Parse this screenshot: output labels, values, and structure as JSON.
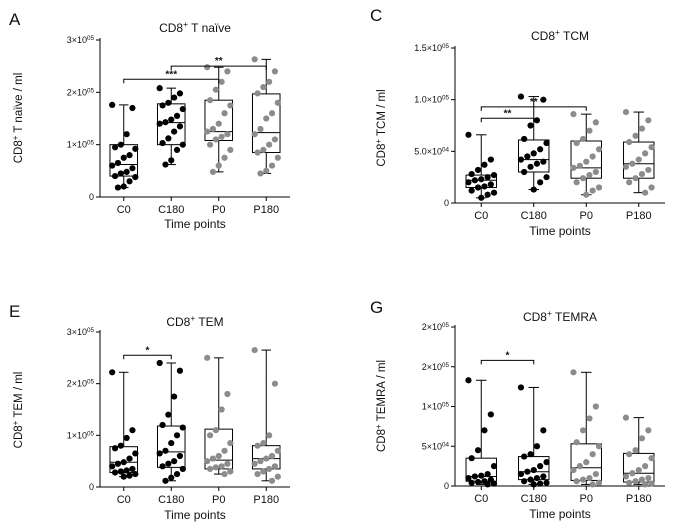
{
  "chart_data": [
    {
      "type": "box",
      "panel_letter": "A",
      "title_parts": [
        [
          "CD8",
          ""
        ],
        [
          "+",
          "sup"
        ],
        [
          " T naïve",
          ""
        ]
      ],
      "ylabel_parts": [
        [
          "CD8",
          ""
        ],
        [
          "+",
          "sup"
        ],
        [
          " T naïve / ml",
          ""
        ]
      ],
      "xlabel": "Time points",
      "categories": [
        "C0",
        "C180",
        "P0",
        "P180"
      ],
      "ylim": [
        0,
        300000
      ],
      "yticks": [
        {
          "value": 0,
          "parts": [
            [
              "0",
              ""
            ]
          ]
        },
        {
          "value": 100000,
          "parts": [
            [
              "1×10",
              ""
            ],
            [
              "05",
              "sup"
            ]
          ]
        },
        {
          "value": 200000,
          "parts": [
            [
              "2×10",
              ""
            ],
            [
              "05",
              "sup"
            ]
          ]
        },
        {
          "value": 300000,
          "parts": [
            [
              "3×10",
              ""
            ],
            [
              "05",
              "sup"
            ]
          ]
        }
      ],
      "colors": [
        "#000000",
        "#000000",
        "#8c8c8c",
        "#8c8c8c"
      ],
      "boxes": [
        {
          "min": 18000,
          "q1": 40000,
          "median": 62000,
          "q3": 100000,
          "max": 176000
        },
        {
          "min": 62000,
          "q1": 100000,
          "median": 142000,
          "q3": 178000,
          "max": 208000
        },
        {
          "min": 48000,
          "q1": 108000,
          "median": 125000,
          "q3": 185000,
          "max": 248000
        },
        {
          "min": 45000,
          "q1": 85000,
          "median": 123000,
          "q3": 197000,
          "max": 263000
        }
      ],
      "points": [
        [
          176000,
          170000,
          120000,
          100000,
          95000,
          92000,
          80000,
          75000,
          65000,
          60000,
          55000,
          48000,
          45000,
          40000,
          38000,
          30000,
          20000,
          18000
        ],
        [
          208000,
          198000,
          190000,
          180000,
          175000,
          168000,
          155000,
          148000,
          143000,
          140000,
          135000,
          125000,
          112000,
          103000,
          100000,
          90000,
          70000,
          62000
        ],
        [
          248000,
          240000,
          220000,
          205000,
          185000,
          175000,
          160000,
          140000,
          130000,
          125000,
          120000,
          115000,
          110000,
          100000,
          90000,
          75000,
          60000,
          48000
        ],
        [
          263000,
          240000,
          220000,
          210000,
          198000,
          180000,
          160000,
          150000,
          130000,
          120000,
          110000,
          100000,
          90000,
          85000,
          75000,
          60000,
          50000,
          45000
        ]
      ],
      "significance": [
        {
          "from": 0,
          "to": 2,
          "y": 225000,
          "label": "***"
        },
        {
          "from": 1,
          "to": 3,
          "y": 250000,
          "label": "**"
        }
      ]
    },
    {
      "type": "box",
      "panel_letter": "C",
      "title_parts": [
        [
          "CD8",
          ""
        ],
        [
          "+",
          "sup"
        ],
        [
          " TCM",
          ""
        ]
      ],
      "ylabel_parts": [
        [
          "CD8",
          ""
        ],
        [
          "+",
          "sup"
        ],
        [
          " TCM / ml",
          ""
        ]
      ],
      "xlabel": "Time points",
      "categories": [
        "C0",
        "C180",
        "P0",
        "P180"
      ],
      "ylim": [
        0,
        150000
      ],
      "yticks": [
        {
          "value": 0,
          "parts": [
            [
              "0",
              ""
            ]
          ]
        },
        {
          "value": 50000,
          "parts": [
            [
              "5.0×10",
              ""
            ],
            [
              "04",
              "sup"
            ]
          ]
        },
        {
          "value": 100000,
          "parts": [
            [
              "1.0×10",
              ""
            ],
            [
              "05",
              "sup"
            ]
          ]
        },
        {
          "value": 150000,
          "parts": [
            [
              "1.5×10",
              ""
            ],
            [
              "05",
              "sup"
            ]
          ]
        }
      ],
      "colors": [
        "#000000",
        "#000000",
        "#8c8c8c",
        "#8c8c8c"
      ],
      "boxes": [
        {
          "min": 5000,
          "q1": 15000,
          "median": 22000,
          "q3": 27000,
          "max": 66000
        },
        {
          "min": 13000,
          "q1": 30000,
          "median": 42000,
          "q3": 61000,
          "max": 103000
        },
        {
          "min": 8000,
          "q1": 24000,
          "median": 34000,
          "q3": 60000,
          "max": 86000
        },
        {
          "min": 10000,
          "q1": 24000,
          "median": 38000,
          "q3": 59000,
          "max": 88000
        }
      ],
      "points": [
        [
          66000,
          42000,
          37000,
          32000,
          28000,
          27000,
          25000,
          23000,
          22000,
          20000,
          18000,
          16000,
          15000,
          12000,
          10000,
          8000,
          5000
        ],
        [
          103000,
          100000,
          80000,
          75000,
          62000,
          58000,
          52000,
          48000,
          45000,
          42000,
          40000,
          38000,
          35000,
          30000,
          25000,
          20000,
          13000
        ],
        [
          86000,
          78000,
          70000,
          62000,
          58000,
          52000,
          45000,
          40000,
          36000,
          34000,
          30000,
          27000,
          24000,
          20000,
          15000,
          12000,
          8000
        ],
        [
          88000,
          80000,
          72000,
          65000,
          59000,
          54000,
          48000,
          42000,
          38000,
          35000,
          32000,
          28000,
          24000,
          20000,
          15000,
          10000
        ]
      ],
      "significance": [
        {
          "from": 0,
          "to": 1,
          "y": 82000,
          "label": "**"
        },
        {
          "from": 0,
          "to": 2,
          "y": 93000,
          "label": "**"
        }
      ]
    },
    {
      "type": "box",
      "panel_letter": "E",
      "title_parts": [
        [
          "CD8",
          ""
        ],
        [
          "+",
          "sup"
        ],
        [
          " TEM",
          ""
        ]
      ],
      "ylabel_parts": [
        [
          "CD8",
          ""
        ],
        [
          "+",
          "sup"
        ],
        [
          " TEM / ml",
          ""
        ]
      ],
      "xlabel": "Time points",
      "categories": [
        "C0",
        "C180",
        "P0",
        "P180"
      ],
      "ylim": [
        0,
        300000
      ],
      "yticks": [
        {
          "value": 0,
          "parts": [
            [
              "0",
              ""
            ]
          ]
        },
        {
          "value": 100000,
          "parts": [
            [
              "1×10",
              ""
            ],
            [
              "05",
              "sup"
            ]
          ]
        },
        {
          "value": 200000,
          "parts": [
            [
              "2×10",
              ""
            ],
            [
              "05",
              "sup"
            ]
          ]
        },
        {
          "value": 300000,
          "parts": [
            [
              "3×10",
              ""
            ],
            [
              "05",
              "sup"
            ]
          ]
        }
      ],
      "colors": [
        "#000000",
        "#000000",
        "#8c8c8c",
        "#8c8c8c"
      ],
      "boxes": [
        {
          "min": 20000,
          "q1": 28000,
          "median": 48000,
          "q3": 78000,
          "max": 222000
        },
        {
          "min": 12000,
          "q1": 38000,
          "median": 68000,
          "q3": 118000,
          "max": 240000
        },
        {
          "min": 25000,
          "q1": 35000,
          "median": 52000,
          "q3": 112000,
          "max": 250000
        },
        {
          "min": 12000,
          "q1": 35000,
          "median": 55000,
          "q3": 80000,
          "max": 265000
        }
      ],
      "points": [
        [
          222000,
          110000,
          95000,
          80000,
          75000,
          65000,
          55000,
          48000,
          45000,
          40000,
          35000,
          32000,
          30000,
          28000,
          25000,
          22000,
          20000
        ],
        [
          240000,
          225000,
          175000,
          140000,
          120000,
          115000,
          100000,
          85000,
          70000,
          65000,
          60000,
          50000,
          45000,
          40000,
          35000,
          25000,
          18000,
          12000
        ],
        [
          250000,
          180000,
          150000,
          110000,
          100000,
          85000,
          70000,
          60000,
          55000,
          50000,
          45000,
          40000,
          38000,
          35000,
          30000,
          25000
        ],
        [
          265000,
          200000,
          100000,
          85000,
          80000,
          70000,
          60000,
          55000,
          50000,
          45000,
          40000,
          35000,
          30000,
          25000,
          20000,
          12000
        ]
      ],
      "significance": [
        {
          "from": 0,
          "to": 1,
          "y": 255000,
          "label": "*"
        }
      ]
    },
    {
      "type": "box",
      "panel_letter": "G",
      "title_parts": [
        [
          "CD8",
          ""
        ],
        [
          "+",
          "sup"
        ],
        [
          " TEMRA",
          ""
        ]
      ],
      "ylabel_parts": [
        [
          "CD8",
          ""
        ],
        [
          "+",
          "sup"
        ],
        [
          " TEMRA / ml",
          ""
        ]
      ],
      "xlabel": "Time points",
      "categories": [
        "C0",
        "C180",
        "P0",
        "P180"
      ],
      "ylim": [
        0,
        200000
      ],
      "yticks": [
        {
          "value": 0,
          "parts": [
            [
              "0",
              ""
            ]
          ]
        },
        {
          "value": 50000,
          "parts": [
            [
              "5×10",
              ""
            ],
            [
              "04",
              "sup"
            ]
          ]
        },
        {
          "value": 100000,
          "parts": [
            [
              "1×10",
              ""
            ],
            [
              "05",
              "sup"
            ]
          ]
        },
        {
          "value": 150000,
          "parts": [
            [
              "2×10",
              ""
            ],
            [
              "05",
              "sup"
            ]
          ]
        },
        {
          "value": 200000,
          "parts": [
            [
              "2×10",
              ""
            ],
            [
              "05",
              "sup"
            ]
          ]
        }
      ],
      "colors": [
        "#000000",
        "#000000",
        "#8c8c8c",
        "#8c8c8c"
      ],
      "boxes": [
        {
          "min": 2000,
          "q1": 6000,
          "median": 12000,
          "q3": 35000,
          "max": 133000
        },
        {
          "min": 2000,
          "q1": 8000,
          "median": 18000,
          "q3": 37000,
          "max": 124000
        },
        {
          "min": 2000,
          "q1": 7000,
          "median": 23000,
          "q3": 53000,
          "max": 143000
        },
        {
          "min": 2000,
          "q1": 5000,
          "median": 16000,
          "q3": 41000,
          "max": 86000
        }
      ],
      "points": [
        [
          133000,
          90000,
          70000,
          45000,
          35000,
          25000,
          15000,
          13000,
          12000,
          10000,
          8000,
          6000,
          5000,
          4000,
          3000,
          2000
        ],
        [
          124000,
          70000,
          50000,
          40000,
          37000,
          30000,
          25000,
          20000,
          18000,
          15000,
          12000,
          10000,
          8000,
          6000,
          4000,
          3000,
          2000
        ],
        [
          143000,
          100000,
          85000,
          70000,
          55000,
          50000,
          40000,
          30000,
          25000,
          20000,
          15000,
          10000,
          8000,
          6000,
          4000,
          2000
        ],
        [
          86000,
          70000,
          60000,
          45000,
          40000,
          35000,
          25000,
          20000,
          16000,
          12000,
          10000,
          8000,
          6000,
          4000,
          3000,
          2000
        ]
      ],
      "significance": [
        {
          "from": 0,
          "to": 1,
          "y": 158000,
          "label": "*"
        }
      ]
    }
  ]
}
